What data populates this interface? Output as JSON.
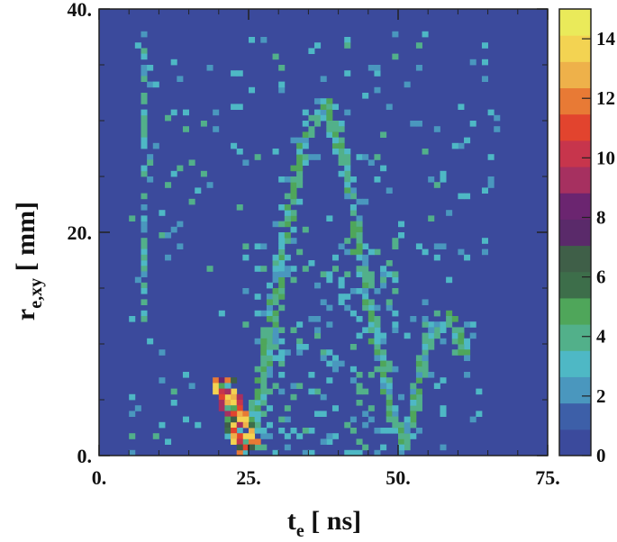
{
  "chart_data": {
    "type": "heatmap",
    "title": "",
    "xlabel": {
      "main": "t",
      "sub": "e",
      "unit": " [ ns]"
    },
    "ylabel": {
      "main": "r",
      "sub": "e,xy",
      "unit": " [ mm]"
    },
    "xlim": [
      0,
      75
    ],
    "ylim": [
      0,
      40
    ],
    "x_ticks": [
      0,
      25,
      50,
      75
    ],
    "x_tick_labels": [
      "0.",
      "25.",
      "50.",
      "75."
    ],
    "y_ticks": [
      0,
      20,
      40
    ],
    "y_tick_labels": [
      "0.",
      "20.",
      "40."
    ],
    "bins": {
      "x": 75,
      "y": 80
    },
    "background_value": 0,
    "zlim": [
      0,
      15
    ],
    "colorbar": {
      "ticks": [
        0,
        2,
        4,
        6,
        8,
        10,
        12,
        14
      ],
      "tick_labels": [
        "0",
        "2",
        "4",
        "6",
        "8",
        "10",
        "12",
        "14"
      ],
      "colors": [
        "#3b4a9c",
        "#3d5fa8",
        "#4a97be",
        "#4eb8c5",
        "#52b08a",
        "#4fa65a",
        "#3d6e4a",
        "#3f5f48",
        "#5a2a6a",
        "#6b2570",
        "#a63060",
        "#c7354c",
        "#e2442e",
        "#e87a35",
        "#eeb14a",
        "#f3d352",
        "#eaea5a"
      ]
    },
    "features": [
      {
        "name": "left-vertical-band",
        "points": [
          [
            7.5,
            38
          ],
          [
            7.8,
            35
          ],
          [
            7.4,
            30
          ],
          [
            7.6,
            25
          ],
          [
            7.3,
            20
          ],
          [
            7.6,
            12
          ]
        ]
      },
      {
        "name": "hot-peak",
        "points": [
          [
            21,
            6.5
          ],
          [
            21.5,
            5.5
          ],
          [
            22,
            4.8
          ],
          [
            22.5,
            4
          ],
          [
            23,
            3.2
          ],
          [
            23.5,
            2.4
          ],
          [
            24,
            1.6
          ],
          [
            24.5,
            1
          ],
          [
            25,
            0.6
          ]
        ]
      },
      {
        "name": "rising-edge",
        "points": [
          [
            25,
            1
          ],
          [
            26,
            3
          ],
          [
            27,
            6
          ],
          [
            28,
            9
          ],
          [
            29,
            12.5
          ],
          [
            30,
            16
          ],
          [
            31,
            19
          ],
          [
            32,
            22
          ],
          [
            33,
            25
          ],
          [
            34,
            27
          ],
          [
            35,
            29
          ],
          [
            36,
            30.5
          ],
          [
            37,
            31
          ],
          [
            38,
            31.5
          ]
        ]
      },
      {
        "name": "falling-edge",
        "points": [
          [
            38,
            31.5
          ],
          [
            39,
            30
          ],
          [
            40,
            28
          ],
          [
            41,
            25.5
          ],
          [
            42,
            23
          ],
          [
            43,
            20
          ],
          [
            44,
            17
          ],
          [
            45,
            14
          ],
          [
            46,
            11.5
          ],
          [
            47,
            9
          ],
          [
            48,
            6.5
          ],
          [
            49,
            4
          ],
          [
            50,
            2
          ],
          [
            51,
            0.8
          ]
        ]
      },
      {
        "name": "second-hump",
        "points": [
          [
            51,
            1
          ],
          [
            52,
            3
          ],
          [
            53,
            5.5
          ],
          [
            54,
            7.5
          ],
          [
            55,
            9.5
          ],
          [
            56,
            11
          ],
          [
            57,
            12
          ],
          [
            58,
            12.5
          ],
          [
            59,
            12
          ],
          [
            60,
            10.5
          ],
          [
            61,
            8.5
          ]
        ]
      }
    ]
  }
}
